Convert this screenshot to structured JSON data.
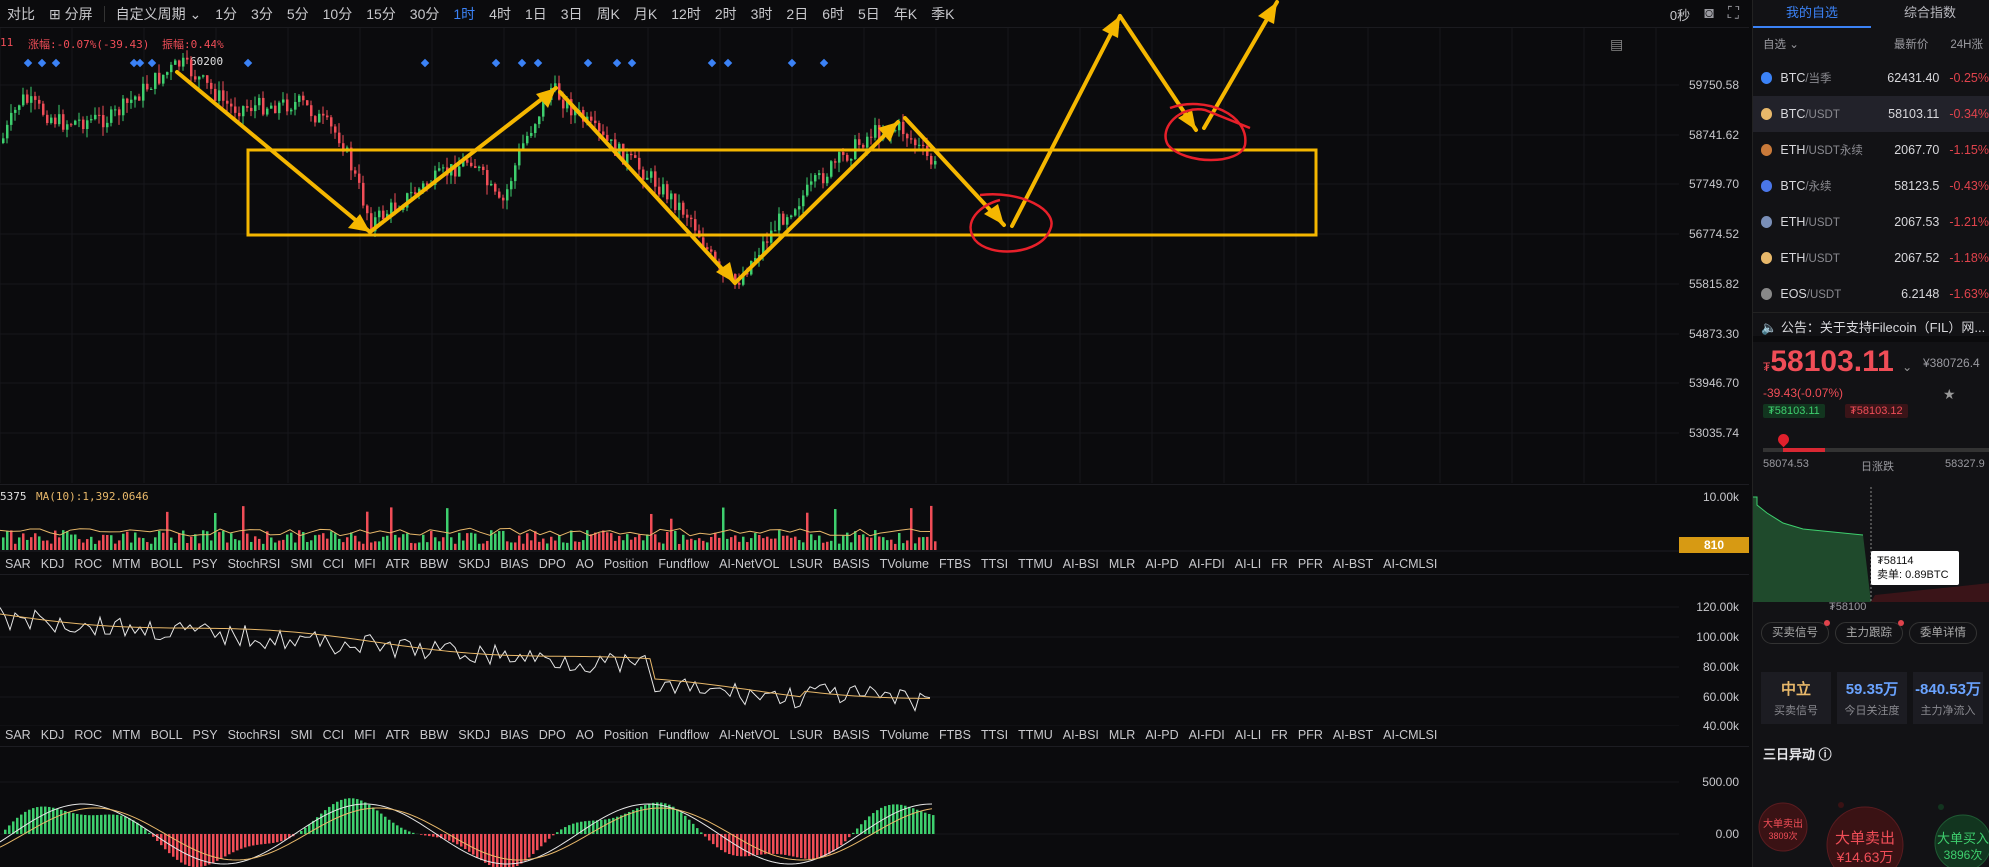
{
  "toolbar": {
    "items": [
      "对比",
      "分屏",
      "自定义周期 ⌄",
      "1分",
      "3分",
      "5分",
      "10分",
      "15分",
      "30分",
      "1时",
      "4时",
      "1日",
      "3日",
      "周K",
      "月K",
      "12时",
      "2时",
      "3时",
      "2日",
      "6时",
      "5日",
      "年K",
      "季K"
    ],
    "active": "1时",
    "countdown": "0秒"
  },
  "chart_header": {
    "prefix": "11",
    "change": "涨幅:-0.07%(-39.43)",
    "amplitude": "振幅:0.44%",
    "marker": "60200"
  },
  "price_axis": [
    "59750.58",
    "58741.62",
    "57749.70",
    "56774.52",
    "55815.82",
    "54873.30",
    "53946.70",
    "53035.74"
  ],
  "volume": {
    "label": "5375",
    "ma": "MA(10):1,392.0646",
    "axis_top": "10.00k",
    "badge": "810"
  },
  "indicator_tabs": [
    "SAR",
    "KDJ",
    "ROC",
    "MTM",
    "BOLL",
    "PSY",
    "StochRSI",
    "SMI",
    "CCI",
    "MFI",
    "ATR",
    "BBW",
    "SKDJ",
    "BIAS",
    "DPO",
    "AO",
    "Position",
    "Fundflow",
    "AI-NetVOL",
    "LSUR",
    "BASIS",
    "TVolume",
    "FTBS",
    "TTSI",
    "TTMU",
    "AI-BSI",
    "MLR",
    "AI-PD",
    "AI-FDI",
    "AI-LI",
    "FR",
    "PFR",
    "AI-BST",
    "AI-CMLSI"
  ],
  "indicator2_axis": [
    "120.00k",
    "100.00k",
    "80.00k",
    "60.00k",
    "40.00k"
  ],
  "indicator3_axis": [
    "500.00",
    "0.00"
  ],
  "right_panel": {
    "tabs": [
      "我的自选",
      "综合指数"
    ],
    "list_head": {
      "group": "自选 ⌄",
      "price": "最新价",
      "change": "24H涨"
    },
    "coins": [
      {
        "name": "BTC",
        "pair": "/当季",
        "price": "62431.40",
        "change": "-0.25%",
        "color": "#3b82f6"
      },
      {
        "name": "BTC",
        "pair": "/USDT",
        "price": "58103.11",
        "change": "-0.34%",
        "color": "#e8b86a"
      },
      {
        "name": "ETH",
        "pair": "/USDT永续",
        "price": "2067.70",
        "change": "-1.15%",
        "color": "#c97a3a"
      },
      {
        "name": "BTC",
        "pair": "/永续",
        "price": "58123.5",
        "change": "-0.43%",
        "color": "#4a76e8"
      },
      {
        "name": "ETH",
        "pair": "/USDT",
        "price": "2067.53",
        "change": "-1.21%",
        "color": "#7a8fb8"
      },
      {
        "name": "ETH",
        "pair": "/USDT",
        "price": "2067.52",
        "change": "-1.18%",
        "color": "#e8b86a"
      },
      {
        "name": "EOS",
        "pair": "/USDT",
        "price": "6.2148",
        "change": "-1.63%",
        "color": "#888"
      }
    ],
    "notice": "公告：关于支持Filecoin（FIL）网...",
    "price": "58103.11",
    "currency_symbol": "₮",
    "cny": "¥380726.4",
    "change": "-39.43(-0.07%)",
    "bid": "₮58103.11",
    "ask": "₮58103.12",
    "range_low": "58074.53",
    "range_label": "日涨跌",
    "range_high": "58327.9",
    "tooltip_price": "₮58114",
    "tooltip_sell": "卖单: 0.89BTC",
    "depth_label": "₮58100",
    "buttons": [
      "买卖信号",
      "主力跟踪",
      "委单详情"
    ],
    "stats": [
      {
        "value": "中立",
        "label": "买卖信号",
        "color": "#e8b86a"
      },
      {
        "value": "59.35万",
        "label": "今日关注度",
        "color": "#6aa3ff"
      },
      {
        "value": "-840.53万",
        "label": "主力净流入",
        "color": "#6aa3ff"
      }
    ],
    "three_day": "三日异动 ⓘ",
    "bubbles": [
      {
        "title": "大单卖出",
        "sub": "3809次"
      },
      {
        "title": "大单卖出",
        "sub": "¥14.63万"
      },
      {
        "title": "大单买入",
        "sub": "3896次"
      }
    ]
  },
  "colors": {
    "up": "#3ecf6e",
    "down": "#f04d57",
    "accent": "#3b82f6",
    "annotation": "#f5b700",
    "circle": "#e8202a"
  }
}
